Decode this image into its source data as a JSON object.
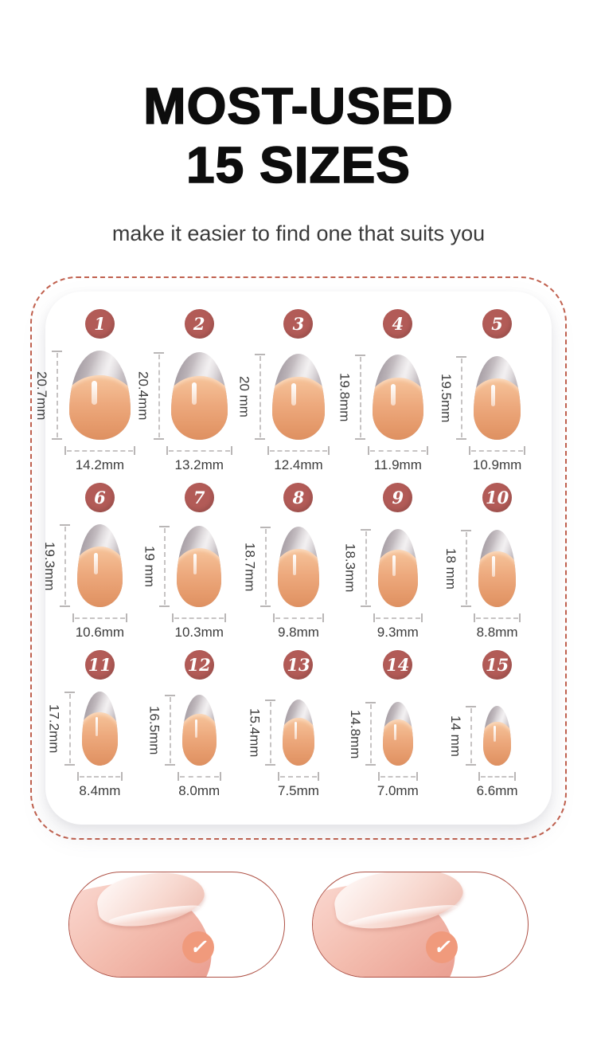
{
  "header": {
    "title_line1": "MOST-USED",
    "title_line2": "15 SIZES",
    "subtitle": "make it easier to find one that suits you"
  },
  "sizes": [
    {
      "num": "1",
      "length_label": "20.7mm",
      "width_label": "14.2mm",
      "length_mm": 20.7,
      "width_mm": 14.2
    },
    {
      "num": "2",
      "length_label": "20.4mm",
      "width_label": "13.2mm",
      "length_mm": 20.4,
      "width_mm": 13.2
    },
    {
      "num": "3",
      "length_label": "20 mm",
      "width_label": "12.4mm",
      "length_mm": 20.0,
      "width_mm": 12.4
    },
    {
      "num": "4",
      "length_label": "19.8mm",
      "width_label": "11.9mm",
      "length_mm": 19.8,
      "width_mm": 11.9
    },
    {
      "num": "5",
      "length_label": "19.5mm",
      "width_label": "10.9mm",
      "length_mm": 19.5,
      "width_mm": 10.9
    },
    {
      "num": "6",
      "length_label": "19.3mm",
      "width_label": "10.6mm",
      "length_mm": 19.3,
      "width_mm": 10.6
    },
    {
      "num": "7",
      "length_label": "19 mm",
      "width_label": "10.3mm",
      "length_mm": 19.0,
      "width_mm": 10.3
    },
    {
      "num": "8",
      "length_label": "18.7mm",
      "width_label": "9.8mm",
      "length_mm": 18.7,
      "width_mm": 9.8
    },
    {
      "num": "9",
      "length_label": "18.3mm",
      "width_label": "9.3mm",
      "length_mm": 18.3,
      "width_mm": 9.3
    },
    {
      "num": "10",
      "length_label": "18 mm",
      "width_label": "8.8mm",
      "length_mm": 18.0,
      "width_mm": 8.8
    },
    {
      "num": "11",
      "length_label": "17.2mm",
      "width_label": "8.4mm",
      "length_mm": 17.2,
      "width_mm": 8.4
    },
    {
      "num": "12",
      "length_label": "16.5mm",
      "width_label": "8.0mm",
      "length_mm": 16.5,
      "width_mm": 8.0
    },
    {
      "num": "13",
      "length_label": "15.4mm",
      "width_label": "7.5mm",
      "length_mm": 15.4,
      "width_mm": 7.5
    },
    {
      "num": "14",
      "length_label": "14.8mm",
      "width_label": "7.0mm",
      "length_mm": 14.8,
      "width_mm": 7.0
    },
    {
      "num": "15",
      "length_label": "14 mm",
      "width_label": "6.6mm",
      "length_mm": 14.0,
      "width_mm": 6.6
    }
  ],
  "footer": {
    "check_glyph": "✓"
  },
  "colors": {
    "title_text": "#0d0d0d",
    "badge_bg": "#b25b57",
    "dashed_border": "#c0604e",
    "pill_border": "#ae5044",
    "check_badge_bg": "#f09a7c",
    "ruler": "#b9b6b6",
    "label_text": "#3c3c3c"
  }
}
